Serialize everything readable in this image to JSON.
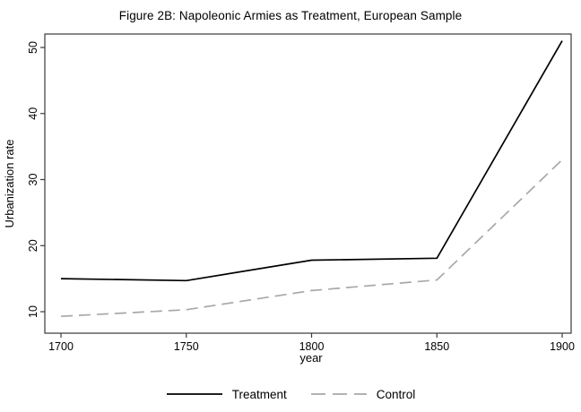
{
  "chart_data": {
    "type": "line",
    "title": "Figure 2B: Napoleonic Armies as Treatment, European Sample",
    "xlabel": "year",
    "ylabel": "Urbanization rate",
    "x": [
      1700,
      1750,
      1800,
      1850,
      1900
    ],
    "series": [
      {
        "name": "Treatment",
        "values": [
          15,
          14.7,
          17.8,
          18.1,
          51
        ],
        "color": "#000000",
        "style": "solid"
      },
      {
        "name": "Control",
        "values": [
          9.3,
          10.3,
          13.2,
          14.8,
          33
        ],
        "color": "#a8a8a8",
        "style": "dash"
      }
    ],
    "xlim": [
      1700,
      1900
    ],
    "ylim": [
      10,
      50
    ],
    "xticks": [
      1700,
      1750,
      1800,
      1850,
      1900
    ],
    "yticks": [
      10,
      20,
      30,
      40,
      50
    ],
    "grid": false,
    "legend_position": "bottom",
    "frame_color": "#3a3a3a",
    "background": "#ffffff"
  }
}
